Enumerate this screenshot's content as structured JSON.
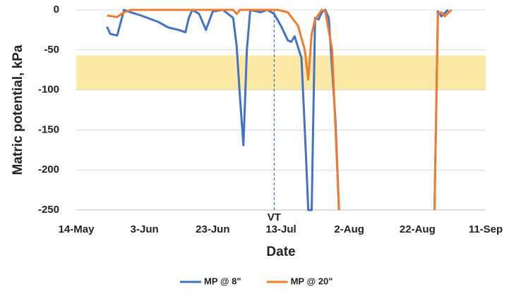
{
  "chart_data": {
    "type": "line",
    "y_label": "Matric potential, kPa",
    "x_label": "Date",
    "xlim": [
      "14-May",
      "11-Sep"
    ],
    "xticks": [
      "14-May",
      "3-Jun",
      "23-Jun",
      "13-Jul",
      "2-Aug",
      "22-Aug",
      "11-Sep"
    ],
    "ylim": [
      -250,
      0
    ],
    "yticks": [
      -250,
      -200,
      -150,
      -100,
      -50,
      0
    ],
    "grid": true,
    "shaded_range": [
      -100,
      -57
    ],
    "shaded_color": "#fde9a6",
    "annotation": {
      "text": "VT",
      "x": "11-Jul"
    },
    "legend": "bottom",
    "series": [
      {
        "name": "MP @ 8\"",
        "color": "#4472c4",
        "x": [
          "23-May",
          "24-May",
          "26-May",
          "28-May",
          "30-May",
          "2-Jun",
          "7-Jun",
          "10-Jun",
          "13-Jun",
          "15-Jun",
          "16-Jun",
          "17-Jun",
          "19-Jun",
          "21-Jun",
          "23-Jun",
          "26-Jun",
          "29-Jun",
          "30-Jun",
          "1-Jul",
          "2-Jul",
          "3-Jul",
          "4-Jul",
          "7-Jul",
          "9-Jul",
          "11-Jul",
          "13-Jul",
          "15-Jul",
          "16-Jul",
          "17-Jul",
          "19-Jul",
          "20-Jul",
          "21-Jul",
          "22-Jul",
          "23-Jul",
          "24-Jul",
          "25-Jul",
          "26-Jul",
          "27-Jul",
          "29-Jul",
          "30-Jul",
          "31-Jul",
          "27-Aug",
          "28-Aug",
          "29-Aug",
          "31-Aug"
        ],
        "values": [
          -21,
          -30,
          -32,
          0,
          -3,
          -7,
          -15,
          -22,
          -25,
          -28,
          -10,
          0,
          -5,
          -25,
          -2,
          0,
          -10,
          -45,
          -110,
          -169,
          -50,
          0,
          -3,
          0,
          -5,
          -20,
          -38,
          -40,
          -33,
          -60,
          -150,
          -250,
          -250,
          -10,
          -12,
          -3,
          0,
          -10,
          -140,
          -250,
          null,
          -250,
          -2,
          -8,
          0
        ]
      },
      {
        "name": "MP @ 20\"",
        "color": "#ed7d31",
        "x": [
          "23-May",
          "26-May",
          "28-May",
          "30-May",
          "29-Jun",
          "30-Jun",
          "1-Jul",
          "12-Jul",
          "15-Jul",
          "18-Jul",
          "20-Jul",
          "21-Jul",
          "22-Jul",
          "23-Jul",
          "25-Jul",
          "26-Jul",
          "28-Jul",
          "29-Jul",
          "30-Jul",
          "31-Jul",
          "27-Aug",
          "28-Aug",
          "29-Aug",
          "30-Aug",
          "1-Sep"
        ],
        "values": [
          -7,
          -9,
          -3,
          0,
          0,
          -5,
          0,
          0,
          -3,
          -20,
          -50,
          -87,
          -30,
          -12,
          0,
          -2,
          -50,
          -150,
          -250,
          null,
          -250,
          -5,
          -3,
          -8,
          0
        ]
      }
    ]
  }
}
